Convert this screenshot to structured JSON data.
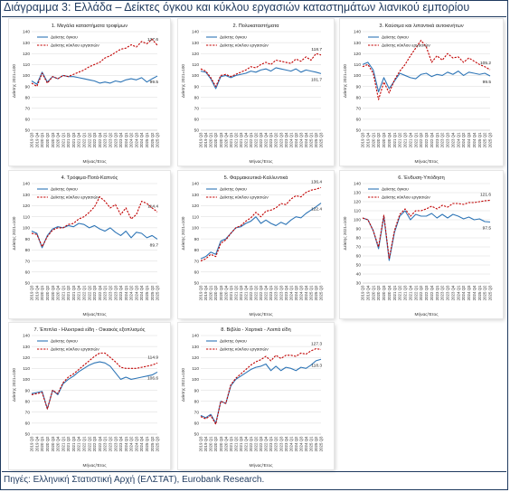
{
  "title": "Διάγραμμα 3: Ελλάδα – Δείκτες όγκου και κύκλου εργασιών καταστημάτων λιανικού εμπορίου",
  "footer": "Πηγές: Ελληνική Στατιστική Αρχή (ΕΛΣΤΑΤ), Eurobank Research.",
  "colors": {
    "volume": "#2e75b6",
    "turnover": "#c00000",
    "title": "#1f3a5f"
  },
  "chart_data": [
    {
      "type": "line",
      "title": "1. Μεγάλα καταστήματα τροφίμων",
      "ylabel": "Δείκτης 2021=100",
      "xlabel": "Μήνας/Έτος",
      "ylim": [
        50,
        140
      ],
      "yticks": [
        50,
        60,
        70,
        80,
        90,
        100,
        110,
        120,
        130,
        140
      ],
      "x": [
        "2019 Q3",
        "2019 Q4",
        "2020 Q1",
        "2020 Q2",
        "2020 Q3",
        "2020 Q4",
        "2021 Q1",
        "2021 Q2",
        "2021 Q3",
        "2021 Q4",
        "2022 Q1",
        "2022 Q2",
        "2022 Q3",
        "2022 Q4",
        "2023 Q1",
        "2023 Q2",
        "2023 Q3",
        "2023 Q4",
        "2024 Q1",
        "2024 Q2",
        "2024 Q3",
        "2024 Q4",
        "2025 Q1",
        "2025 Q2",
        "2025 Q3"
      ],
      "series": [
        {
          "name": "Δείκτης όγκου",
          "values": [
            95,
            92,
            103,
            94,
            99,
            97,
            100,
            99,
            99,
            98,
            97,
            96,
            95,
            93,
            94,
            93,
            95,
            94,
            96,
            97,
            96,
            98,
            94,
            97,
            99.5
          ]
        },
        {
          "name": "Δείκτης κύκλου εργασιών",
          "values": [
            93,
            90,
            102,
            93,
            99,
            97,
            100,
            99,
            101,
            103,
            105,
            108,
            110,
            112,
            116,
            118,
            121,
            124,
            125,
            128,
            126,
            131,
            129,
            133,
            127.6
          ]
        }
      ],
      "end_labels": [
        "127.6",
        "99.5"
      ],
      "legend": "top-left"
    },
    {
      "type": "line",
      "title": "2. Πολυκαταστήματα",
      "ylabel": "Δείκτης 2021=100",
      "xlabel": "Μήνας/Έτος",
      "ylim": [
        50,
        140
      ],
      "yticks": [
        50,
        60,
        70,
        80,
        90,
        100,
        110,
        120,
        130,
        140
      ],
      "x": [
        "2019 Q3",
        "2019 Q4",
        "2020 Q1",
        "2020 Q2",
        "2020 Q3",
        "2020 Q4",
        "2021 Q1",
        "2021 Q2",
        "2021 Q3",
        "2021 Q4",
        "2022 Q1",
        "2022 Q2",
        "2022 Q3",
        "2022 Q4",
        "2023 Q1",
        "2023 Q2",
        "2023 Q3",
        "2023 Q4",
        "2024 Q1",
        "2024 Q2",
        "2024 Q3",
        "2024 Q4",
        "2025 Q1",
        "2025 Q2",
        "2025 Q3"
      ],
      "series": [
        {
          "name": "Δείκτης όγκου",
          "values": [
            104,
            103,
            97,
            88,
            99,
            100,
            98,
            100,
            101,
            102,
            104,
            103,
            105,
            106,
            104,
            107,
            106,
            105,
            104,
            106,
            103,
            105,
            104,
            103,
            101.7
          ]
        },
        {
          "name": "Δείκτης κύκλου εργασιών",
          "values": [
            106,
            104,
            98,
            90,
            100,
            101,
            99,
            101,
            103,
            105,
            108,
            107,
            110,
            112,
            110,
            114,
            113,
            112,
            111,
            115,
            113,
            117,
            114,
            120,
            118.7
          ]
        }
      ],
      "end_labels": [
        "118.7",
        "101.7"
      ],
      "legend": "top-left"
    },
    {
      "type": "line",
      "title": "3. Καύσιμα και λιπαντικά αυτοκινήτων",
      "ylabel": "Δείκτης 2021=100",
      "xlabel": "Μήνας/Έτος",
      "ylim": [
        50,
        140
      ],
      "yticks": [
        50,
        60,
        70,
        80,
        90,
        100,
        110,
        120,
        130,
        140
      ],
      "x": [
        "2019 Q3",
        "2019 Q4",
        "2020 Q1",
        "2020 Q2",
        "2020 Q3",
        "2020 Q4",
        "2021 Q1",
        "2021 Q2",
        "2021 Q3",
        "2021 Q4",
        "2022 Q1",
        "2022 Q2",
        "2022 Q3",
        "2022 Q4",
        "2023 Q1",
        "2023 Q2",
        "2023 Q3",
        "2023 Q4",
        "2024 Q1",
        "2024 Q2",
        "2024 Q3",
        "2024 Q4",
        "2025 Q1",
        "2025 Q2",
        "2025 Q3"
      ],
      "series": [
        {
          "name": "Δείκτης όγκου",
          "values": [
            110,
            112,
            105,
            85,
            98,
            88,
            95,
            102,
            100,
            98,
            97,
            101,
            102,
            99,
            101,
            100,
            103,
            101,
            104,
            100,
            103,
            102,
            101,
            102,
            99.5
          ]
        },
        {
          "name": "Δείκτης κύκλου εργασιών",
          "values": [
            108,
            110,
            102,
            78,
            94,
            84,
            96,
            104,
            110,
            118,
            125,
            132,
            126,
            112,
            118,
            114,
            120,
            116,
            117,
            112,
            116,
            113,
            110,
            108,
            105.2
          ]
        }
      ],
      "end_labels": [
        "105.2",
        "99.5"
      ],
      "legend": "top-left"
    },
    {
      "type": "line",
      "title": "4. Τρόφιμα-Ποτά-Καπνός",
      "ylabel": "Δείκτης 2021=100",
      "xlabel": "Μήνας/Έτος",
      "ylim": [
        50,
        140
      ],
      "yticks": [
        50,
        60,
        70,
        80,
        90,
        100,
        110,
        120,
        130,
        140
      ],
      "x": [
        "2019 Q3",
        "2019 Q4",
        "2020 Q1",
        "2020 Q2",
        "2020 Q3",
        "2020 Q4",
        "2021 Q1",
        "2021 Q2",
        "2021 Q3",
        "2021 Q4",
        "2022 Q1",
        "2022 Q2",
        "2022 Q3",
        "2022 Q4",
        "2023 Q1",
        "2023 Q2",
        "2023 Q3",
        "2023 Q4",
        "2024 Q1",
        "2024 Q2",
        "2024 Q3",
        "2024 Q4",
        "2025 Q1",
        "2025 Q2",
        "2025 Q3"
      ],
      "series": [
        {
          "name": "Δείκτης όγκου",
          "values": [
            97,
            95,
            82,
            93,
            99,
            101,
            100,
            102,
            101,
            104,
            103,
            100,
            102,
            99,
            97,
            100,
            96,
            93,
            97,
            91,
            96,
            95,
            91,
            93,
            89.7
          ]
        },
        {
          "name": "Δείκτης κύκλου εργασιών",
          "values": [
            95,
            94,
            83,
            92,
            98,
            100,
            100,
            103,
            104,
            108,
            110,
            114,
            119,
            128,
            124,
            118,
            121,
            112,
            118,
            108,
            112,
            124,
            122,
            118,
            114.4
          ]
        }
      ],
      "end_labels": [
        "114.4",
        "89.7"
      ],
      "legend": "top-left"
    },
    {
      "type": "line",
      "title": "5. Φαρμακευτικά-Καλλυντικά",
      "ylabel": "Δείκτης 2021=100",
      "xlabel": "Μήνας/Έτος",
      "ylim": [
        50,
        140
      ],
      "yticks": [
        50,
        60,
        70,
        80,
        90,
        100,
        110,
        120,
        130,
        140
      ],
      "x": [
        "2019 Q3",
        "2019 Q4",
        "2020 Q1",
        "2020 Q2",
        "2020 Q3",
        "2020 Q4",
        "2021 Q1",
        "2021 Q2",
        "2021 Q3",
        "2021 Q4",
        "2022 Q1",
        "2022 Q2",
        "2022 Q3",
        "2022 Q4",
        "2023 Q1",
        "2023 Q2",
        "2023 Q3",
        "2023 Q4",
        "2024 Q1",
        "2024 Q2",
        "2024 Q3",
        "2024 Q4",
        "2025 Q1",
        "2025 Q2",
        "2025 Q3"
      ],
      "series": [
        {
          "name": "Δείκτης όγκου",
          "values": [
            72,
            74,
            78,
            76,
            88,
            90,
            95,
            100,
            101,
            104,
            106,
            110,
            104,
            107,
            104,
            102,
            105,
            103,
            107,
            110,
            109,
            113,
            116,
            119,
            122.4
          ]
        },
        {
          "name": "Δείκτης κύκλου εργασιών",
          "values": [
            70,
            72,
            76,
            74,
            86,
            89,
            95,
            100,
            102,
            106,
            109,
            114,
            110,
            115,
            116,
            118,
            122,
            121,
            126,
            129,
            128,
            132,
            134,
            135,
            136.4
          ]
        }
      ],
      "end_labels": [
        "136.4",
        "122.4"
      ],
      "legend": "top-left"
    },
    {
      "type": "line",
      "title": "6. Ένδυση-Υπόδηση",
      "ylabel": "Δείκτης 2021=100",
      "xlabel": "Μήνας/Έτος",
      "ylim": [
        30,
        140
      ],
      "yticks": [
        30,
        40,
        50,
        60,
        70,
        80,
        90,
        100,
        110,
        120,
        130,
        140
      ],
      "x": [
        "2019 Q3",
        "2019 Q4",
        "2020 Q1",
        "2020 Q2",
        "2020 Q3",
        "2020 Q4",
        "2021 Q1",
        "2021 Q2",
        "2021 Q3",
        "2021 Q4",
        "2022 Q1",
        "2022 Q2",
        "2022 Q3",
        "2022 Q4",
        "2023 Q1",
        "2023 Q2",
        "2023 Q3",
        "2023 Q4",
        "2024 Q1",
        "2024 Q2",
        "2024 Q3",
        "2024 Q4",
        "2025 Q1",
        "2025 Q2",
        "2025 Q3"
      ],
      "series": [
        {
          "name": "Δείκτης όγκου",
          "values": [
            102,
            100,
            88,
            68,
            104,
            55,
            86,
            104,
            110,
            100,
            106,
            104,
            104,
            107,
            102,
            106,
            102,
            106,
            104,
            101,
            103,
            100,
            101,
            98,
            97.5
          ]
        },
        {
          "name": "Δείκτης κύκλου εργασιών",
          "values": [
            102,
            100,
            88,
            70,
            105,
            57,
            88,
            106,
            112,
            104,
            110,
            110,
            112,
            115,
            112,
            116,
            114,
            118,
            118,
            117,
            119,
            119,
            120,
            121,
            121.6
          ]
        }
      ],
      "end_labels": [
        "121.6",
        "97.5"
      ],
      "legend": "top-left"
    },
    {
      "type": "line",
      "title": "7. Έπιπλα - Ηλεκτρικά είδη - Οικιακός εξοπλισμός",
      "ylabel": "Δείκτης 2021=100",
      "xlabel": "Μήνας/Έτος",
      "ylim": [
        50,
        140
      ],
      "yticks": [
        50,
        60,
        70,
        80,
        90,
        100,
        110,
        120,
        130,
        140
      ],
      "x": [
        "2019 Q3",
        "2019 Q4",
        "2020 Q1",
        "2020 Q2",
        "2020 Q3",
        "2020 Q4",
        "2021 Q1",
        "2021 Q2",
        "2021 Q3",
        "2021 Q4",
        "2022 Q1",
        "2022 Q2",
        "2022 Q3",
        "2022 Q4",
        "2023 Q1",
        "2023 Q2",
        "2023 Q3",
        "2023 Q4",
        "2024 Q1",
        "2024 Q2",
        "2024 Q3",
        "2024 Q4",
        "2025 Q1",
        "2025 Q2",
        "2025 Q3"
      ],
      "series": [
        {
          "name": "Δείκτης όγκου",
          "values": [
            87,
            88,
            89,
            73,
            90,
            86,
            96,
            100,
            103,
            107,
            110,
            113,
            115,
            116,
            115,
            112,
            106,
            100,
            102,
            100,
            101,
            102,
            103,
            104,
            106.6
          ]
        },
        {
          "name": "Δείκτης κύκλου εργασιών",
          "values": [
            86,
            87,
            88,
            73,
            90,
            87,
            97,
            102,
            105,
            109,
            113,
            117,
            121,
            124,
            124,
            120,
            116,
            111,
            110,
            110,
            110,
            111,
            112,
            113,
            114.9
          ]
        }
      ],
      "end_labels": [
        "114.9",
        "106.6"
      ],
      "legend": "top-left"
    },
    {
      "type": "line",
      "title": "8. Βιβλία - Χαρτικά - Λοιπά είδη",
      "ylabel": "Δείκτης 2021=100",
      "xlabel": "Μήνας/Έτος",
      "ylim": [
        50,
        140
      ],
      "yticks": [
        50,
        60,
        70,
        80,
        90,
        100,
        110,
        120,
        130,
        140
      ],
      "x": [
        "2019 Q3",
        "2019 Q4",
        "2020 Q1",
        "2020 Q2",
        "2020 Q3",
        "2020 Q4",
        "2021 Q1",
        "2021 Q2",
        "2021 Q3",
        "2021 Q4",
        "2022 Q1",
        "2022 Q2",
        "2022 Q3",
        "2022 Q4",
        "2023 Q1",
        "2023 Q2",
        "2023 Q3",
        "2023 Q4",
        "2024 Q1",
        "2024 Q2",
        "2024 Q3",
        "2024 Q4",
        "2025 Q1",
        "2025 Q2",
        "2025 Q3"
      ],
      "series": [
        {
          "name": "Δείκτης όγκου",
          "values": [
            67,
            65,
            68,
            60,
            80,
            78,
            94,
            100,
            103,
            106,
            109,
            111,
            112,
            114,
            108,
            112,
            108,
            111,
            110,
            108,
            111,
            110,
            113,
            117,
            118.3
          ]
        },
        {
          "name": "Δείκτης κύκλου εργασιών",
          "values": [
            66,
            64,
            67,
            59,
            80,
            78,
            95,
            101,
            105,
            109,
            113,
            116,
            118,
            121,
            117,
            122,
            119,
            122,
            122,
            121,
            124,
            123,
            126,
            128,
            127.3
          ]
        }
      ],
      "end_labels": [
        "127.3",
        "118.3"
      ],
      "legend": "top-left"
    }
  ]
}
